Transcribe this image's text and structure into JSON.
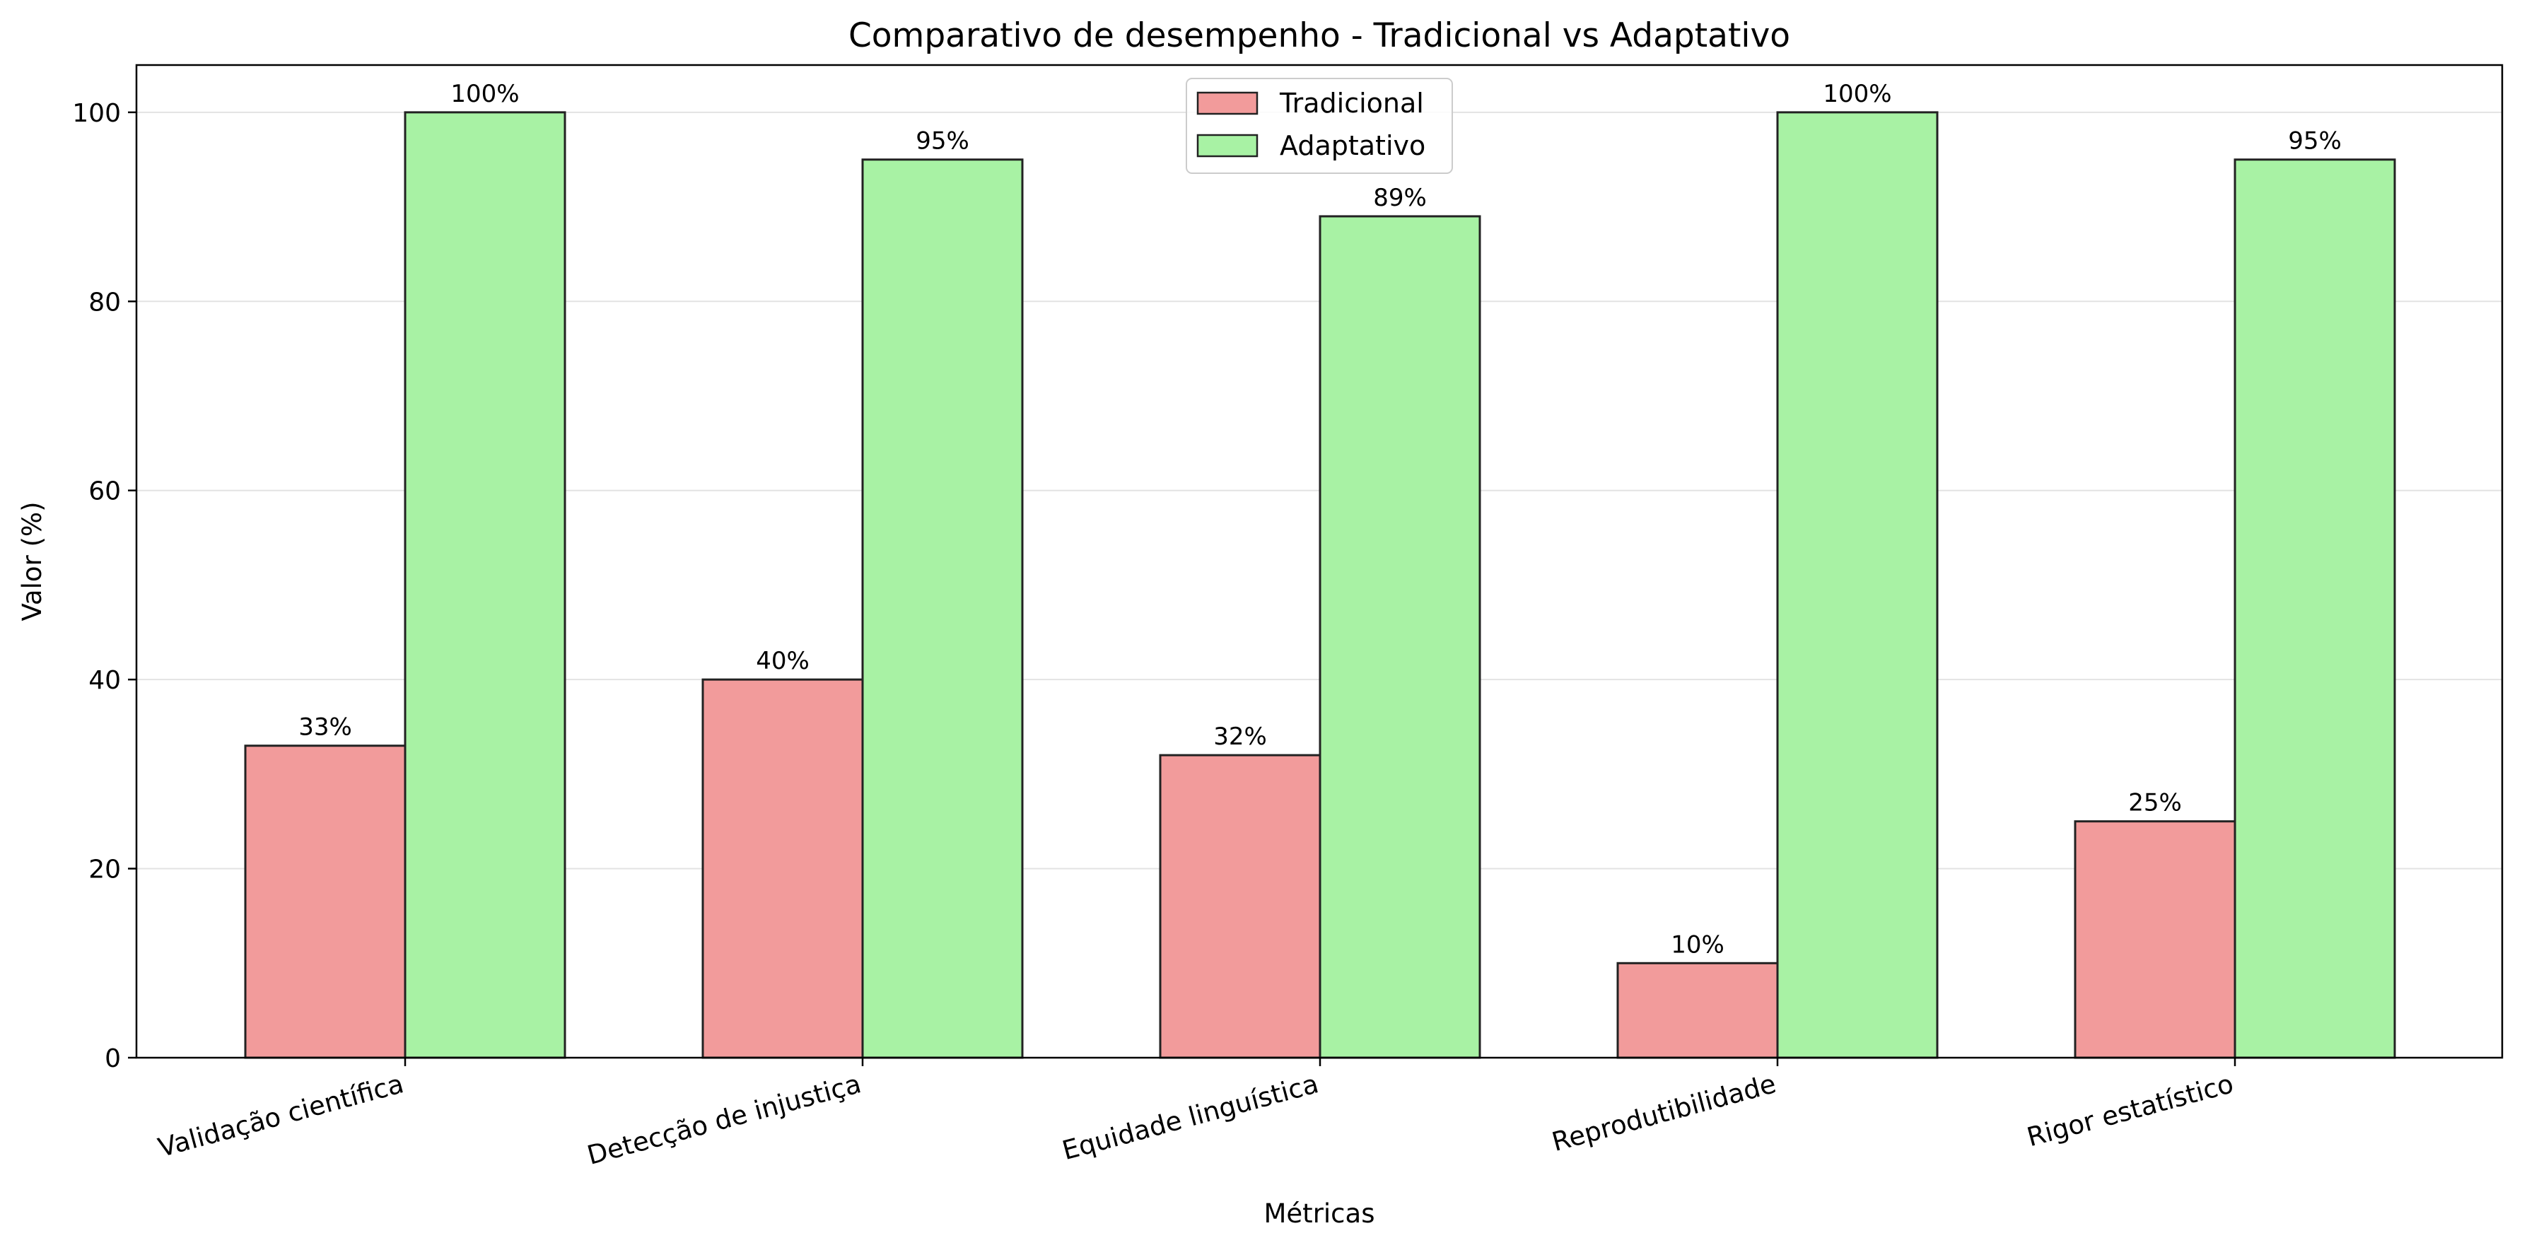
{
  "chart_data": {
    "type": "bar",
    "title": "Comparativo de desempenho - Tradicional vs Adaptativo",
    "xlabel": "Métricas",
    "ylabel": "Valor (%)",
    "ylim": [
      0,
      105
    ],
    "yticks": [
      0,
      20,
      40,
      60,
      80,
      100
    ],
    "grid": "horizontal",
    "legend_position": "top-center",
    "categories": [
      "Validação científica",
      "Detecção de injustiça",
      "Equidade linguística",
      "Reprodutibilidade",
      "Rigor estatístico"
    ],
    "series": [
      {
        "name": "Tradicional",
        "color": "#f29b9b",
        "values": [
          33,
          40,
          32,
          10,
          25
        ],
        "labels": [
          "33%",
          "40%",
          "32%",
          "10%",
          "25%"
        ]
      },
      {
        "name": "Adaptativo",
        "color": "#a8f2a4",
        "values": [
          100,
          95,
          89,
          100,
          95
        ],
        "labels": [
          "100%",
          "95%",
          "89%",
          "100%",
          "95%"
        ]
      }
    ]
  }
}
